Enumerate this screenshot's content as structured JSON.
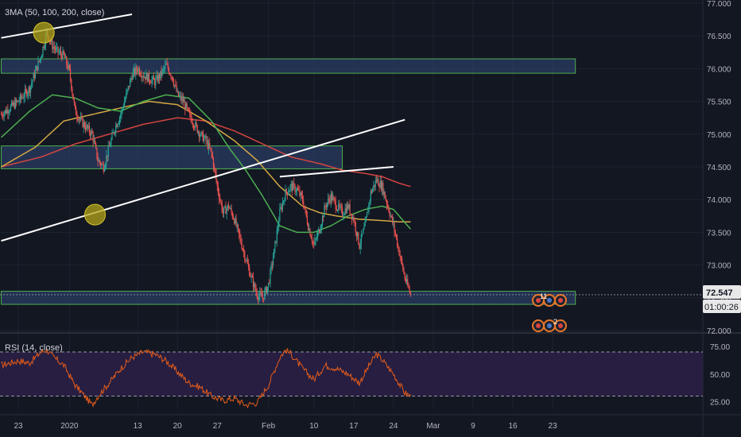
{
  "main_indicator_label": "3MA (50, 100, 200, close)",
  "rsi_indicator_label": "RSI (14, close)",
  "price_badge": {
    "value": "72.547",
    "countdown": "01:00:26",
    "color": "#e8e8e8"
  },
  "colors": {
    "background": "#131722",
    "up": "#26a69a",
    "down": "#ef5350",
    "ma50": "#4caf50",
    "ma100": "#d4a843",
    "ma200": "#d4453f",
    "zone_fill": "#2c3e66",
    "zone_border": "#4caf50",
    "trendline": "#ffffff",
    "rsi_line": "#e65c1a",
    "rsi_band": "#2a1f45",
    "marker": "#b3a61a"
  },
  "icons": [
    "earnings-flag-icon",
    "news-icon"
  ],
  "event_badges": [
    "11",
    "2"
  ],
  "chart_data": [
    {
      "type": "candlestick",
      "title": "",
      "ylim": [
        72.0,
        77.0
      ],
      "y_ticks": [
        "72.000",
        "72.500",
        "73.000",
        "73.500",
        "74.000",
        "74.500",
        "75.000",
        "75.500",
        "76.000",
        "76.500",
        "77.000"
      ],
      "x_ticks": [
        "23",
        "2020",
        "13",
        "20",
        "27",
        "Feb",
        "10",
        "17",
        "24",
        "Mar",
        "9",
        "16",
        "23"
      ],
      "x_tick_days": [
        0,
        9,
        21,
        28,
        35,
        44,
        52,
        59,
        66,
        73,
        80,
        87,
        94
      ],
      "candle_anchors": [
        [
          -3,
          75.3
        ],
        [
          0,
          75.5
        ],
        [
          2,
          75.7
        ],
        [
          4,
          76.2
        ],
        [
          5,
          76.55
        ],
        [
          6,
          76.35
        ],
        [
          7,
          76.25
        ],
        [
          8,
          76.2
        ],
        [
          9,
          75.95
        ],
        [
          10,
          75.35
        ],
        [
          11,
          75.2
        ],
        [
          12,
          75.1
        ],
        [
          13,
          75.0
        ],
        [
          14,
          74.6
        ],
        [
          15,
          74.5
        ],
        [
          16,
          74.8
        ],
        [
          17,
          75.1
        ],
        [
          18,
          75.3
        ],
        [
          19,
          75.6
        ],
        [
          20,
          75.9
        ],
        [
          21,
          76.0
        ],
        [
          22,
          75.9
        ],
        [
          23,
          75.85
        ],
        [
          24,
          75.8
        ],
        [
          25,
          75.9
        ],
        [
          26,
          76.05
        ],
        [
          27,
          75.9
        ],
        [
          28,
          75.6
        ],
        [
          29,
          75.5
        ],
        [
          30,
          75.3
        ],
        [
          31,
          75.15
        ],
        [
          32,
          75.0
        ],
        [
          33,
          74.9
        ],
        [
          34,
          74.7
        ],
        [
          35,
          74.2
        ],
        [
          36,
          73.8
        ],
        [
          37,
          73.9
        ],
        [
          38,
          73.7
        ],
        [
          39,
          73.4
        ],
        [
          40,
          73.1
        ],
        [
          41,
          72.8
        ],
        [
          42,
          72.55
        ],
        [
          43,
          72.5
        ],
        [
          44,
          72.7
        ],
        [
          45,
          73.2
        ],
        [
          46,
          73.8
        ],
        [
          47,
          74.1
        ],
        [
          48,
          74.2
        ],
        [
          49,
          74.15
        ],
        [
          50,
          74.0
        ],
        [
          51,
          73.6
        ],
        [
          52,
          73.3
        ],
        [
          53,
          73.55
        ],
        [
          54,
          73.9
        ],
        [
          55,
          74.05
        ],
        [
          56,
          73.9
        ],
        [
          57,
          73.8
        ],
        [
          58,
          73.9
        ],
        [
          59,
          73.7
        ],
        [
          60,
          73.3
        ],
        [
          61,
          73.6
        ],
        [
          62,
          74.1
        ],
        [
          63,
          74.3
        ],
        [
          64,
          74.2
        ],
        [
          65,
          73.9
        ],
        [
          66,
          73.6
        ],
        [
          67,
          73.2
        ],
        [
          68,
          72.8
        ],
        [
          69,
          72.55
        ]
      ],
      "moving_averages": {
        "ma50": [
          [
            -3,
            74.95
          ],
          [
            2,
            75.35
          ],
          [
            6,
            75.6
          ],
          [
            10,
            75.55
          ],
          [
            14,
            75.4
          ],
          [
            18,
            75.35
          ],
          [
            22,
            75.5
          ],
          [
            26,
            75.6
          ],
          [
            30,
            75.55
          ],
          [
            34,
            75.2
          ],
          [
            37,
            74.8
          ],
          [
            40,
            74.45
          ],
          [
            43,
            74.05
          ],
          [
            46,
            73.6
          ],
          [
            49,
            73.5
          ],
          [
            52,
            73.5
          ],
          [
            55,
            73.6
          ],
          [
            58,
            73.75
          ],
          [
            61,
            73.85
          ],
          [
            64,
            73.9
          ],
          [
            66,
            73.85
          ],
          [
            68,
            73.65
          ],
          [
            69,
            73.55
          ]
        ],
        "ma100": [
          [
            -3,
            74.5
          ],
          [
            3,
            74.8
          ],
          [
            8,
            75.2
          ],
          [
            13,
            75.3
          ],
          [
            18,
            75.4
          ],
          [
            23,
            75.5
          ],
          [
            28,
            75.45
          ],
          [
            33,
            75.2
          ],
          [
            38,
            74.9
          ],
          [
            42,
            74.6
          ],
          [
            46,
            74.2
          ],
          [
            50,
            73.9
          ],
          [
            53,
            73.8
          ],
          [
            56,
            73.75
          ],
          [
            60,
            73.7
          ],
          [
            64,
            73.68
          ],
          [
            67,
            73.66
          ],
          [
            69,
            73.66
          ]
        ],
        "ma200": [
          [
            -3,
            74.5
          ],
          [
            4,
            74.65
          ],
          [
            10,
            74.85
          ],
          [
            16,
            75.0
          ],
          [
            22,
            75.15
          ],
          [
            28,
            75.25
          ],
          [
            33,
            75.2
          ],
          [
            38,
            75.05
          ],
          [
            43,
            74.85
          ],
          [
            48,
            74.65
          ],
          [
            53,
            74.55
          ],
          [
            57,
            74.45
          ],
          [
            61,
            74.4
          ],
          [
            64,
            74.35
          ],
          [
            67,
            74.25
          ],
          [
            69,
            74.2
          ]
        ]
      },
      "zones": [
        {
          "top": 76.15,
          "bottom": 75.93,
          "from_day": -3,
          "to_day": 98
        },
        {
          "top": 74.82,
          "bottom": 74.47,
          "from_day": -3,
          "to_day": 57
        },
        {
          "top": 72.6,
          "bottom": 72.4,
          "from_day": -3,
          "to_day": 98
        }
      ],
      "trendlines": [
        {
          "from": [
            -3,
            76.47
          ],
          "to": [
            20,
            76.83
          ]
        },
        {
          "from": [
            -3,
            73.37
          ],
          "to": [
            68,
            75.22
          ]
        },
        {
          "from": [
            46,
            74.35
          ],
          "to": [
            66,
            74.5
          ]
        }
      ],
      "markers": [
        [
          4.5,
          76.55
        ],
        [
          13.5,
          73.77
        ]
      ],
      "current_price": 72.547
    },
    {
      "type": "line",
      "title": "",
      "ylim": [
        15,
        80
      ],
      "y_ticks": [
        "25.00",
        "50.00",
        "75.00"
      ],
      "levels": [
        30,
        70
      ],
      "band": [
        30,
        70
      ],
      "rsi_anchors": [
        [
          -3,
          58
        ],
        [
          0,
          62
        ],
        [
          2,
          60
        ],
        [
          4,
          70
        ],
        [
          5,
          72
        ],
        [
          6,
          66
        ],
        [
          8,
          58
        ],
        [
          10,
          40
        ],
        [
          12,
          28
        ],
        [
          13,
          22
        ],
        [
          14,
          30
        ],
        [
          16,
          42
        ],
        [
          18,
          55
        ],
        [
          20,
          65
        ],
        [
          22,
          70
        ],
        [
          24,
          68
        ],
        [
          26,
          62
        ],
        [
          28,
          52
        ],
        [
          30,
          42
        ],
        [
          32,
          38
        ],
        [
          34,
          30
        ],
        [
          36,
          26
        ],
        [
          38,
          28
        ],
        [
          40,
          22
        ],
        [
          42,
          24
        ],
        [
          44,
          40
        ],
        [
          46,
          65
        ],
        [
          47,
          72
        ],
        [
          48,
          68
        ],
        [
          50,
          55
        ],
        [
          52,
          45
        ],
        [
          54,
          58
        ],
        [
          56,
          55
        ],
        [
          58,
          50
        ],
        [
          60,
          42
        ],
        [
          62,
          60
        ],
        [
          63,
          68
        ],
        [
          64,
          63
        ],
        [
          66,
          50
        ],
        [
          68,
          33
        ],
        [
          69,
          30
        ]
      ]
    }
  ]
}
